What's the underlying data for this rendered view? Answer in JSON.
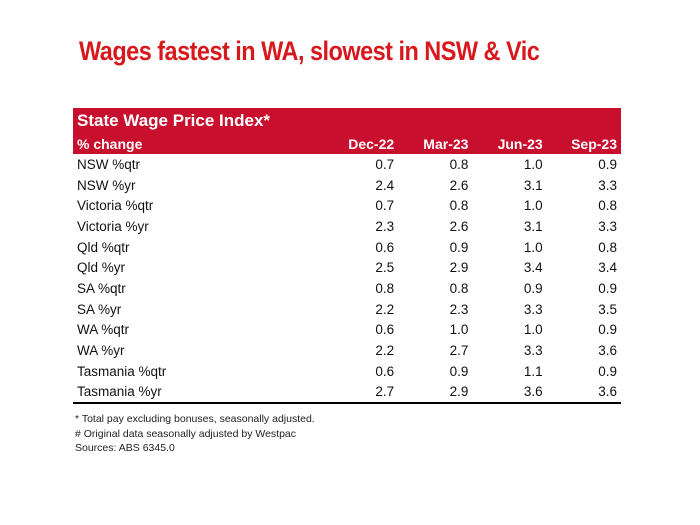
{
  "headline": "Wages fastest in WA, slowest in NSW & Vic",
  "table": {
    "title": "State Wage Price Index*",
    "header_label": "% change",
    "columns": [
      "Dec-22",
      "Mar-23",
      "Jun-23",
      "Sep-23"
    ],
    "rows": [
      {
        "label": "NSW %qtr",
        "values": [
          "0.7",
          "0.8",
          "1.0",
          "0.9"
        ]
      },
      {
        "label": "NSW %yr",
        "values": [
          "2.4",
          "2.6",
          "3.1",
          "3.3"
        ]
      },
      {
        "label": "Victoria %qtr",
        "values": [
          "0.7",
          "0.8",
          "1.0",
          "0.8"
        ]
      },
      {
        "label": "Victoria %yr",
        "values": [
          "2.3",
          "2.6",
          "3.1",
          "3.3"
        ]
      },
      {
        "label": "Qld %qtr",
        "values": [
          "0.6",
          "0.9",
          "1.0",
          "0.8"
        ]
      },
      {
        "label": "Qld %yr",
        "values": [
          "2.5",
          "2.9",
          "3.4",
          "3.4"
        ]
      },
      {
        "label": "SA %qtr",
        "values": [
          "0.8",
          "0.8",
          "0.9",
          "0.9"
        ]
      },
      {
        "label": "SA %yr",
        "values": [
          "2.2",
          "2.3",
          "3.3",
          "3.5"
        ]
      },
      {
        "label": "WA %qtr",
        "values": [
          "0.6",
          "1.0",
          "1.0",
          "0.9"
        ]
      },
      {
        "label": "WA %yr",
        "values": [
          "2.2",
          "2.7",
          "3.3",
          "3.6"
        ]
      },
      {
        "label": "Tasmania %qtr",
        "values": [
          "0.6",
          "0.9",
          "1.1",
          "0.9"
        ]
      },
      {
        "label": "Tasmania %yr",
        "values": [
          "2.7",
          "2.9",
          "3.6",
          "3.6"
        ]
      }
    ]
  },
  "notes": {
    "note1": "* Total pay excluding bonuses, seasonally adjusted.",
    "note2": "# Original data seasonally adjusted by Westpac",
    "sources": "Sources: ABS 6345.0"
  },
  "colors": {
    "headline": "#d7191d",
    "table_header": "#c8102e"
  }
}
